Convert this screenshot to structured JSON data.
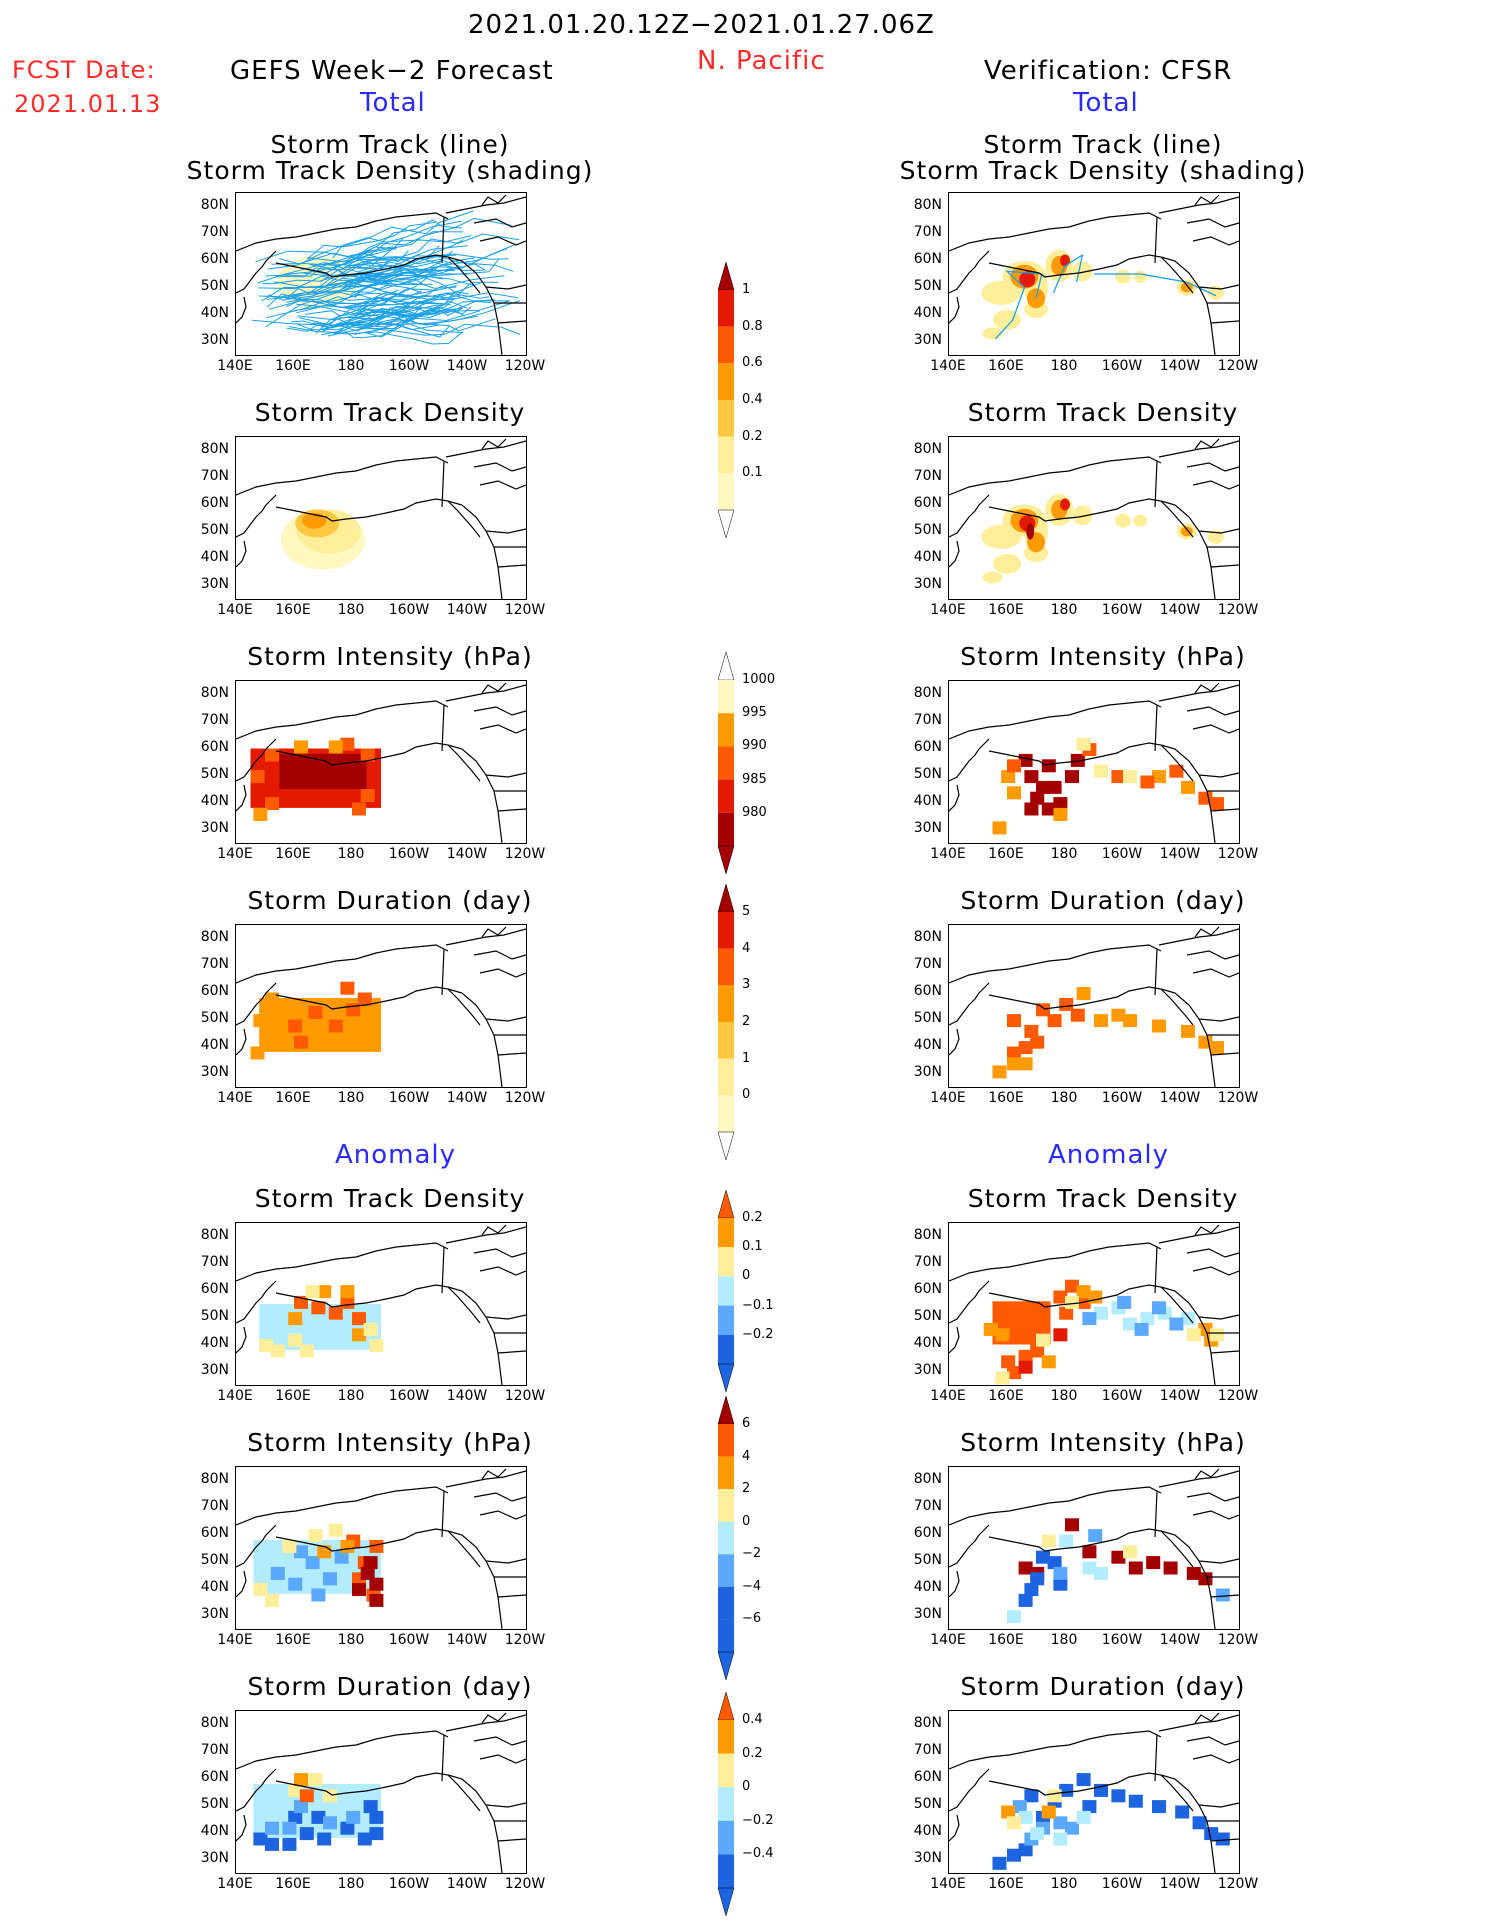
{
  "header": {
    "period": "2021.01.20.12Z−2021.01.27.06Z",
    "region": "N. Pacific",
    "fcst_label": "FCST Date:",
    "fcst_date": "2021.01.13",
    "left_title": "GEFS Week−2 Forecast",
    "right_title": "Verification: CFSR",
    "total_label": "Total",
    "anomaly_label": "Anomaly"
  },
  "panel_titles": {
    "track_line": "Storm Track (line)",
    "track_density_shading": "Storm Track Density (shading)",
    "density": "Storm Track Density",
    "intensity": "Storm Intensity (hPa)",
    "duration": "Storm Duration (day)"
  },
  "axes": {
    "lat_ticks": [
      "80N",
      "70N",
      "60N",
      "50N",
      "40N",
      "30N"
    ],
    "lon_ticks": [
      "140E",
      "160E",
      "180",
      "160W",
      "140W",
      "120W"
    ]
  },
  "colorbars": {
    "density_total": [
      "1",
      "0.8",
      "0.6",
      "0.4",
      "0.2",
      "0.1"
    ],
    "intensity_total": [
      "1000",
      "995",
      "990",
      "985",
      "980"
    ],
    "duration_total": [
      "5",
      "4",
      "3",
      "2",
      "1",
      "0"
    ],
    "density_anom": [
      "0.2",
      "0.1",
      "0",
      "−0.1",
      "−0.2"
    ],
    "intensity_anom": [
      "6",
      "4",
      "2",
      "0",
      "−2",
      "−4",
      "−6"
    ],
    "duration_anom": [
      "0.4",
      "0.2",
      "0",
      "−0.2",
      "−0.4"
    ]
  },
  "colors": {
    "dark_red": "#a50000",
    "red": "#e31a00",
    "red_orange": "#ff5a00",
    "orange": "#ff9a00",
    "light_orange": "#ffc840",
    "yellow": "#ffee99",
    "pale_yellow": "#fff8c0",
    "light_blue": "#b4ecff",
    "mid_blue": "#5aa8ff",
    "blue": "#1c64e0",
    "track_blue": "#1aa0e6"
  },
  "chart_data": {
    "type": "heatmap",
    "title": "2021.01.20.12Z−2021.01.27.06Z N. Pacific",
    "panels": [
      {
        "column": "GEFS Week−2 Forecast",
        "section": "Total",
        "field": "Storm Track (line) / Storm Track Density (shading)"
      },
      {
        "column": "GEFS Week−2 Forecast",
        "section": "Total",
        "field": "Storm Track Density",
        "max_value": 0.6
      },
      {
        "column": "GEFS Week−2 Forecast",
        "section": "Total",
        "field": "Storm Intensity (hPa)",
        "min_value": 980
      },
      {
        "column": "GEFS Week−2 Forecast",
        "section": "Total",
        "field": "Storm Duration (day)",
        "max_value": 3
      },
      {
        "column": "GEFS Week−2 Forecast",
        "section": "Anomaly",
        "field": "Storm Track Density",
        "range": [
          -0.1,
          0.2
        ]
      },
      {
        "column": "GEFS Week−2 Forecast",
        "section": "Anomaly",
        "field": "Storm Intensity (hPa)",
        "range": [
          -4,
          6
        ]
      },
      {
        "column": "GEFS Week−2 Forecast",
        "section": "Anomaly",
        "field": "Storm Duration (day)",
        "range": [
          -0.4,
          0.4
        ]
      },
      {
        "column": "Verification: CFSR",
        "section": "Total",
        "field": "Storm Track (line) / Storm Track Density (shading)"
      },
      {
        "column": "Verification: CFSR",
        "section": "Total",
        "field": "Storm Track Density",
        "max_value": 1.0
      },
      {
        "column": "Verification: CFSR",
        "section": "Total",
        "field": "Storm Intensity (hPa)",
        "min_value": 980
      },
      {
        "column": "Verification: CFSR",
        "section": "Total",
        "field": "Storm Duration (day)",
        "max_value": 3
      },
      {
        "column": "Verification: CFSR",
        "section": "Anomaly",
        "field": "Storm Track Density",
        "range": [
          -0.2,
          0.2
        ]
      },
      {
        "column": "Verification: CFSR",
        "section": "Anomaly",
        "field": "Storm Intensity (hPa)",
        "range": [
          -6,
          6
        ]
      },
      {
        "column": "Verification: CFSR",
        "section": "Anomaly",
        "field": "Storm Duration (day)",
        "range": [
          -0.4,
          0.4
        ]
      }
    ],
    "xlim": [
      "140E",
      "120W"
    ],
    "ylim": [
      "25N",
      "85N"
    ]
  }
}
